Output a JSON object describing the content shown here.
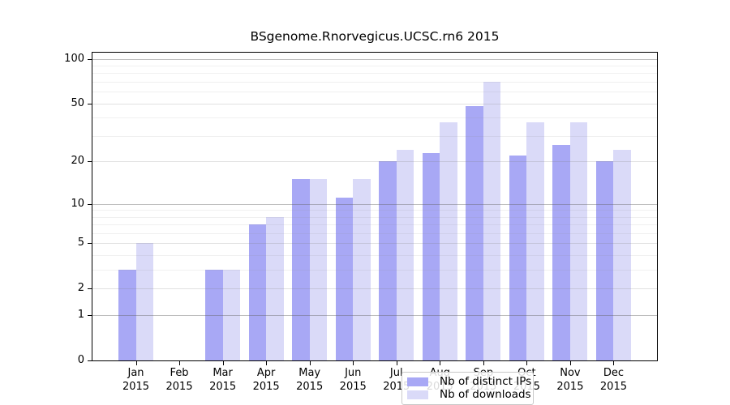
{
  "chart_data": {
    "type": "bar",
    "title": "BSgenome.Rnorvegicus.UCSC.rn6 2015",
    "year": "2015",
    "months": [
      "Jan",
      "Feb",
      "Mar",
      "Apr",
      "May",
      "Jun",
      "Jul",
      "Aug",
      "Sep",
      "Oct",
      "Nov",
      "Dec"
    ],
    "series": [
      {
        "name": "Nb of distinct IPs",
        "color": "#a8a8f5",
        "values": [
          3,
          0,
          3,
          7,
          15,
          11,
          20,
          23,
          48,
          22,
          26,
          20
        ]
      },
      {
        "name": "Nb of downloads",
        "color": "#dadaf8",
        "values": [
          5,
          0,
          3,
          8,
          15,
          15,
          24,
          37,
          70,
          37,
          37,
          24
        ]
      }
    ],
    "xlabel": "",
    "ylabel": "",
    "y_axis": {
      "scale": "log1p",
      "tick_labels": [
        100,
        50,
        20,
        10,
        5,
        2,
        1,
        0
      ],
      "major_gridlines": [
        1,
        10,
        100
      ],
      "mid_gridlines": [
        2,
        5,
        20,
        50
      ],
      "minor_gridlines": [
        3,
        4,
        6,
        7,
        8,
        9,
        30,
        40,
        60,
        70,
        80,
        90
      ],
      "max": 110
    },
    "grid": true,
    "legend_position": "bottom-center-inside",
    "colors": {
      "axis": "#000000",
      "major_grid": "rgba(100,100,100,0.42)",
      "mid_grid": "rgba(130,130,130,0.24)",
      "minor_grid": "rgba(140,140,140,0.13)"
    }
  }
}
